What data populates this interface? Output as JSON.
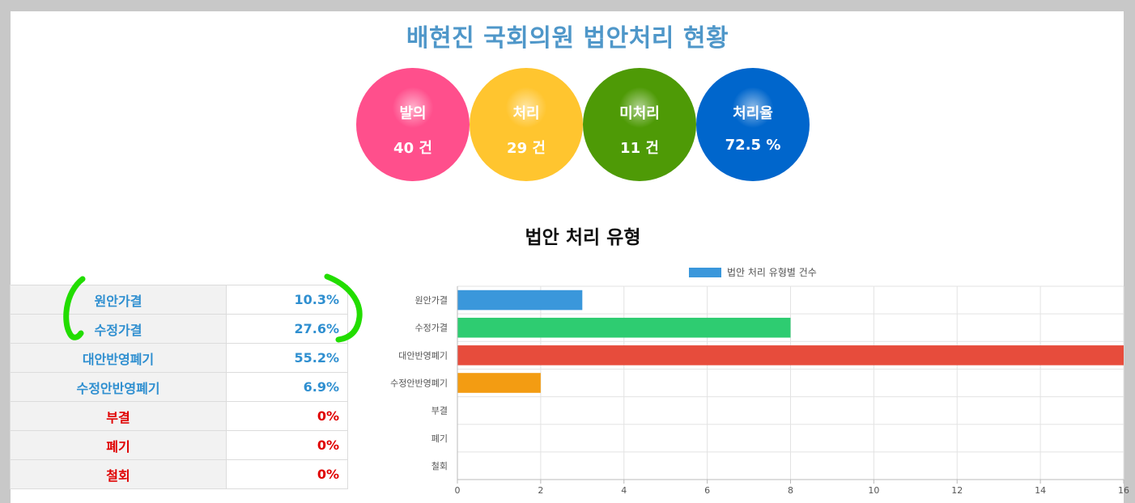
{
  "title": "배현진 국회의원 법안처리 현황",
  "stats": [
    {
      "label": "발의",
      "value": "40 건",
      "color": "#ff4f8c"
    },
    {
      "label": "처리",
      "value": "29 건",
      "color": "#ffc52f"
    },
    {
      "label": "미처리",
      "value": "11 건",
      "color": "#4e9a06"
    },
    {
      "label": "처리율",
      "value": "72.5 %",
      "color": "#0066cc"
    }
  ],
  "section_title": "법안 처리 유형",
  "rates": [
    {
      "name": "원안가결",
      "pct": "10.3%",
      "color": "#2f8fd0"
    },
    {
      "name": "수정가결",
      "pct": "27.6%",
      "color": "#2f8fd0"
    },
    {
      "name": "대안반영폐기",
      "pct": "55.2%",
      "color": "#2f8fd0"
    },
    {
      "name": "수정안반영폐기",
      "pct": "6.9%",
      "color": "#2f8fd0"
    },
    {
      "name": "부결",
      "pct": "0%",
      "color": "#e00000"
    },
    {
      "name": "폐기",
      "pct": "0%",
      "color": "#e00000"
    },
    {
      "name": "철회",
      "pct": "0%",
      "color": "#e00000"
    }
  ],
  "chart_data": {
    "type": "bar",
    "orientation": "horizontal",
    "categories": [
      "원안가결",
      "수정가결",
      "대안반영폐기",
      "수정안반영폐기",
      "부결",
      "폐기",
      "철회"
    ],
    "series": [
      {
        "name": "법안 처리 유형별 건수",
        "values": [
          3,
          8,
          16,
          2,
          0,
          0,
          0
        ]
      }
    ],
    "bar_colors": [
      "#3a97db",
      "#2ecc71",
      "#e74c3c",
      "#f39c12",
      "#9b59b6",
      "#34495e",
      "#95a5a6"
    ],
    "legend_color": "#3a97db",
    "xlim": [
      0,
      16
    ],
    "x_ticks": [
      0,
      2,
      4,
      6,
      8,
      10,
      12,
      14,
      16
    ],
    "grid": true,
    "legend_position": "top"
  }
}
